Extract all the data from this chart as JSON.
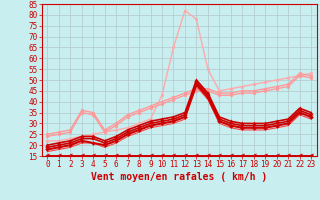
{
  "title": "",
  "xlabel": "Vent moyen/en rafales ( km/h )",
  "background_color": "#c8eef0",
  "grid_color": "#b0c8ca",
  "xlim": [
    -0.5,
    23.5
  ],
  "ylim": [
    15,
    85
  ],
  "yticks": [
    15,
    20,
    25,
    30,
    35,
    40,
    45,
    50,
    55,
    60,
    65,
    70,
    75,
    80,
    85
  ],
  "xticks": [
    0,
    1,
    2,
    3,
    4,
    5,
    6,
    7,
    8,
    9,
    10,
    11,
    12,
    13,
    14,
    15,
    16,
    17,
    18,
    19,
    20,
    21,
    22,
    23
  ],
  "lines": [
    {
      "x": [
        0,
        1,
        2,
        3,
        4,
        5,
        6,
        7,
        8,
        9,
        10,
        11,
        12,
        13,
        14,
        15,
        16,
        17,
        18,
        19,
        20,
        21,
        22,
        23
      ],
      "y": [
        22,
        22,
        23,
        24,
        25,
        26,
        27,
        28,
        30,
        32,
        43,
        65,
        82,
        78,
        55,
        45,
        46,
        47,
        48,
        49,
        50,
        51,
        52,
        53
      ],
      "color": "#ffaaaa",
      "lw": 1.0,
      "marker": "o",
      "ms": 2.0,
      "zorder": 2
    },
    {
      "x": [
        0,
        1,
        2,
        3,
        4,
        5,
        6,
        7,
        8,
        9,
        10,
        11,
        12,
        13,
        14,
        15,
        16,
        17,
        18,
        19,
        20,
        21,
        22,
        23
      ],
      "y": [
        25,
        26,
        27,
        36,
        35,
        27,
        30,
        34,
        36,
        38,
        40,
        42,
        44,
        46,
        46,
        44,
        44,
        45,
        45,
        46,
        47,
        48,
        53,
        52
      ],
      "color": "#ff9999",
      "lw": 1.0,
      "marker": "o",
      "ms": 2.0,
      "zorder": 3
    },
    {
      "x": [
        0,
        1,
        2,
        3,
        4,
        5,
        6,
        7,
        8,
        9,
        10,
        11,
        12,
        13,
        14,
        15,
        16,
        17,
        18,
        19,
        20,
        21,
        22,
        23
      ],
      "y": [
        24,
        25,
        26,
        35,
        34,
        26,
        29,
        33,
        35,
        37,
        39,
        41,
        43,
        45,
        45,
        43,
        43,
        44,
        44,
        45,
        46,
        47,
        52,
        51
      ],
      "color": "#ff9999",
      "lw": 1.0,
      "marker": "o",
      "ms": 2.0,
      "zorder": 3
    },
    {
      "x": [
        0,
        1,
        2,
        3,
        4,
        5,
        6,
        7,
        8,
        9,
        10,
        11,
        12,
        13,
        14,
        15,
        16,
        17,
        18,
        19,
        20,
        21,
        22,
        23
      ],
      "y": [
        20,
        21,
        22,
        24,
        24,
        22,
        24,
        27,
        29,
        31,
        32,
        33,
        35,
        50,
        44,
        33,
        31,
        30,
        30,
        30,
        31,
        32,
        37,
        35
      ],
      "color": "#cc0000",
      "lw": 1.2,
      "marker": "^",
      "ms": 2.5,
      "zorder": 5
    },
    {
      "x": [
        0,
        1,
        2,
        3,
        4,
        5,
        6,
        7,
        8,
        9,
        10,
        11,
        12,
        13,
        14,
        15,
        16,
        17,
        18,
        19,
        20,
        21,
        22,
        23
      ],
      "y": [
        19,
        20,
        21,
        23,
        23,
        21,
        23,
        26,
        28,
        30,
        31,
        32,
        34,
        49,
        43,
        32,
        30,
        29,
        29,
        29,
        30,
        31,
        36,
        34
      ],
      "color": "#cc0000",
      "lw": 1.2,
      "marker": "s",
      "ms": 2.0,
      "zorder": 4
    },
    {
      "x": [
        0,
        1,
        2,
        3,
        4,
        5,
        6,
        7,
        8,
        9,
        10,
        11,
        12,
        13,
        14,
        15,
        16,
        17,
        18,
        19,
        20,
        21,
        22,
        23
      ],
      "y": [
        18,
        19,
        20,
        22,
        21,
        20,
        22,
        25,
        27,
        29,
        30,
        31,
        33,
        48,
        42,
        31,
        29,
        28,
        28,
        28,
        29,
        30,
        35,
        33
      ],
      "color": "#cc0000",
      "lw": 1.5,
      "marker": "D",
      "ms": 2.0,
      "zorder": 4
    },
    {
      "x": [
        0,
        1,
        2,
        3,
        4,
        5,
        6,
        7,
        8,
        9,
        10,
        11,
        12,
        13,
        14,
        15,
        16,
        17,
        18,
        19,
        20,
        21,
        22,
        23
      ],
      "y": [
        17,
        18,
        19,
        21,
        21,
        19,
        21,
        24,
        26,
        28,
        29,
        30,
        32,
        47,
        41,
        30,
        28,
        27,
        27,
        27,
        28,
        29,
        34,
        32
      ],
      "color": "#ff4444",
      "lw": 0.8,
      "marker": null,
      "ms": 0,
      "zorder": 3
    },
    {
      "x": [
        0,
        1,
        2,
        3,
        4,
        5,
        6,
        7,
        8,
        9,
        10,
        11,
        12,
        13,
        14,
        15,
        16,
        17,
        18,
        19,
        20,
        21,
        22,
        23
      ],
      "y": [
        15.5,
        15.5,
        15.5,
        15.5,
        15.5,
        15.5,
        15.5,
        15.5,
        15.5,
        15.5,
        15.5,
        15.5,
        15.5,
        15.5,
        15.5,
        15.5,
        15.5,
        15.5,
        15.5,
        15.5,
        15.5,
        15.5,
        15.5,
        15.5
      ],
      "color": "#cc0000",
      "lw": 0.7,
      "marker": "<",
      "ms": 2.5,
      "zorder": 6
    }
  ],
  "xlabel_color": "#cc0000",
  "xlabel_fontsize": 7,
  "tick_color": "#cc0000",
  "tick_fontsize": 5.5
}
